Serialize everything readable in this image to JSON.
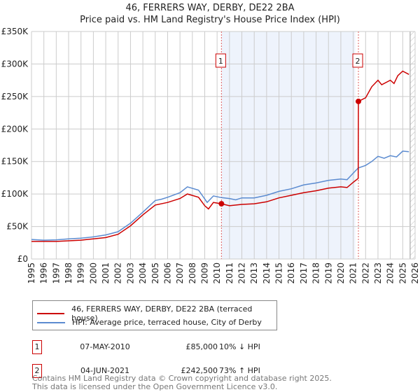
{
  "title": "46, FERRERS WAY, DERBY, DE22 2BA",
  "subtitle": "Price paid vs. HM Land Registry's House Price Index (HPI)",
  "chart_data": {
    "type": "line",
    "title": "46, FERRERS WAY, DERBY, DE22 2BA",
    "subtitle": "Price paid vs. HM Land Registry's House Price Index (HPI)",
    "xlim": [
      1995,
      2026
    ],
    "ylim": [
      0,
      350000
    ],
    "x_ticks": [
      "1995",
      "1996",
      "1997",
      "1998",
      "1999",
      "2000",
      "2001",
      "2002",
      "2003",
      "2004",
      "2005",
      "2006",
      "2007",
      "2008",
      "2009",
      "2010",
      "2011",
      "2012",
      "2013",
      "2014",
      "2015",
      "2016",
      "2017",
      "2018",
      "2019",
      "2020",
      "2021",
      "2022",
      "2023",
      "2024",
      "2025",
      "2026"
    ],
    "y_ticks": [
      {
        "v": 0,
        "label": "£0"
      },
      {
        "v": 50000,
        "label": "£50K"
      },
      {
        "v": 100000,
        "label": "£100K"
      },
      {
        "v": 150000,
        "label": "£150K"
      },
      {
        "v": 200000,
        "label": "£200K"
      },
      {
        "v": 250000,
        "label": "£250K"
      },
      {
        "v": 300000,
        "label": "£300K"
      },
      {
        "v": 350000,
        "label": "£350K"
      }
    ],
    "grid": true,
    "shaded_range": [
      2010.35,
      2021.17
    ],
    "hatched_from": 2025.6,
    "series": [
      {
        "name": "46, FERRERS WAY, DERBY, DE22 2BA (terraced house)",
        "color": "#cc0000",
        "x": [
          1995,
          1996,
          1997,
          1998,
          1999,
          2000,
          2001,
          2002,
          2003,
          2004,
          2005,
          2006,
          2007,
          2007.6,
          2008.5,
          2009,
          2009.3,
          2009.7,
          2010.35,
          2011,
          2012,
          2013,
          2014,
          2015,
          2016,
          2017,
          2018,
          2019,
          2020,
          2020.5,
          2021,
          2021.4,
          2021.42,
          2022,
          2022.5,
          2023,
          2023.3,
          2024,
          2024.3,
          2024.6,
          2025,
          2025.5
        ],
        "y": [
          27000,
          27000,
          27000,
          28000,
          29000,
          31000,
          33000,
          38000,
          51000,
          68000,
          83000,
          87000,
          93000,
          100000,
          95000,
          82000,
          77000,
          87000,
          85000,
          82000,
          84000,
          85000,
          88000,
          94000,
          98000,
          102000,
          105000,
          109000,
          111000,
          110000,
          118000,
          124000,
          242500,
          248000,
          265000,
          275000,
          268000,
          275000,
          270000,
          282000,
          289000,
          284000
        ]
      },
      {
        "name": "HPI: Average price, terraced house, City of Derby",
        "color": "#5b8bd0",
        "x": [
          1995,
          1996,
          1997,
          1998,
          1999,
          2000,
          2001,
          2002,
          2003,
          2004,
          2005,
          2005.5,
          2006,
          2007,
          2007.6,
          2008.5,
          2009.2,
          2009.7,
          2010.35,
          2011,
          2011.5,
          2012,
          2013,
          2014,
          2015,
          2016,
          2017,
          2018,
          2019,
          2020,
          2020.5,
          2021,
          2021.4,
          2022,
          2022.5,
          2023,
          2023.5,
          2024,
          2024.5,
          2025,
          2025.5
        ],
        "y": [
          30000,
          29000,
          29500,
          31000,
          32000,
          34000,
          37000,
          42000,
          55000,
          72000,
          90000,
          92000,
          95000,
          102000,
          111000,
          106000,
          87000,
          97000,
          94500,
          93000,
          91000,
          94000,
          94000,
          98000,
          104000,
          108000,
          114000,
          117000,
          121000,
          123000,
          122000,
          132000,
          140000,
          144000,
          150000,
          158000,
          155000,
          159000,
          157000,
          166000,
          165000
        ]
      }
    ],
    "sales": [
      {
        "label": "1",
        "x": 2010.35,
        "y": 85000,
        "date": "07-MAY-2010",
        "price": "£85,000",
        "hpi": "10% ↓ HPI"
      },
      {
        "label": "2",
        "x": 2021.42,
        "y": 242500,
        "date": "04-JUN-2021",
        "price": "£242,500",
        "hpi": "73% ↑ HPI"
      }
    ]
  },
  "legend": [
    "46, FERRERS WAY, DERBY, DE22 2BA (terraced house)",
    "HPI: Average price, terraced house, City of Derby"
  ],
  "footer": [
    "Contains HM Land Registry data © Crown copyright and database right 2025.",
    "This data is licensed under the Open Government Licence v3.0."
  ]
}
